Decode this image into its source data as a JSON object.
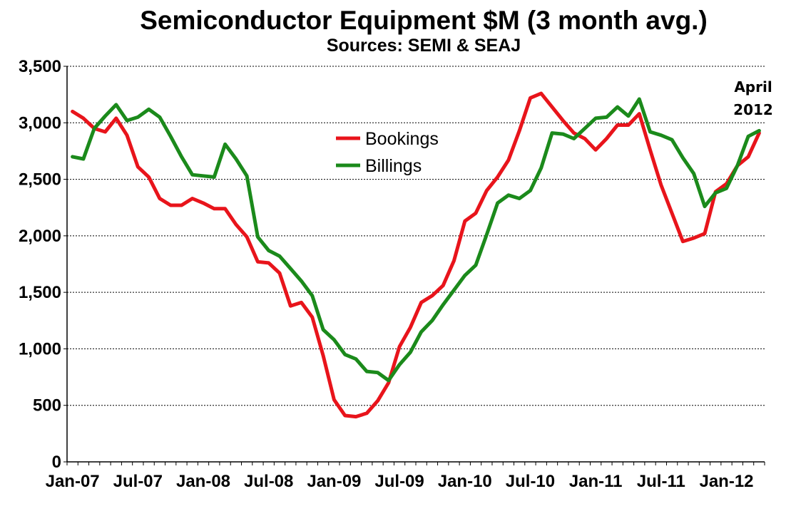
{
  "chart_data": {
    "type": "line",
    "title": "Semiconductor Equipment $M (3 month avg.)",
    "subtitle": "Sources: SEMI & SEAJ",
    "xlabel": "",
    "ylabel": "",
    "ylim": [
      0,
      3500
    ],
    "y_ticks": [
      0,
      500,
      1000,
      1500,
      2000,
      2500,
      3000,
      3500
    ],
    "y_tick_labels": [
      "0",
      "500",
      "1,000",
      "1,500",
      "2,000",
      "2,500",
      "3,000",
      "3,500"
    ],
    "x": [
      "Jan-07",
      "Feb-07",
      "Mar-07",
      "Apr-07",
      "May-07",
      "Jun-07",
      "Jul-07",
      "Aug-07",
      "Sep-07",
      "Oct-07",
      "Nov-07",
      "Dec-07",
      "Jan-08",
      "Feb-08",
      "Mar-08",
      "Apr-08",
      "May-08",
      "Jun-08",
      "Jul-08",
      "Aug-08",
      "Sep-08",
      "Oct-08",
      "Nov-08",
      "Dec-08",
      "Jan-09",
      "Feb-09",
      "Mar-09",
      "Apr-09",
      "May-09",
      "Jun-09",
      "Jul-09",
      "Aug-09",
      "Sep-09",
      "Oct-09",
      "Nov-09",
      "Dec-09",
      "Jan-10",
      "Feb-10",
      "Mar-10",
      "Apr-10",
      "May-10",
      "Jun-10",
      "Jul-10",
      "Aug-10",
      "Sep-10",
      "Oct-10",
      "Nov-10",
      "Dec-10",
      "Jan-11",
      "Feb-11",
      "Mar-11",
      "Apr-11",
      "May-11",
      "Jun-11",
      "Jul-11",
      "Aug-11",
      "Sep-11",
      "Oct-11",
      "Nov-11",
      "Dec-11",
      "Jan-12",
      "Feb-12",
      "Mar-12",
      "Apr-12"
    ],
    "x_tick_labels": [
      "Jan-07",
      "Jul-07",
      "Jan-08",
      "Jul-08",
      "Jan-09",
      "Jul-09",
      "Jan-10",
      "Jul-10",
      "Jan-11",
      "Jul-11",
      "Jan-12"
    ],
    "x_tick_every": 6,
    "grid": true,
    "legend_position": "center-left",
    "series": [
      {
        "name": "Bookings",
        "color": "#e8141b",
        "values": [
          3100,
          3040,
          2950,
          2920,
          3040,
          2890,
          2610,
          2520,
          2330,
          2270,
          2270,
          2330,
          2290,
          2240,
          2240,
          2100,
          1990,
          1770,
          1760,
          1670,
          1380,
          1410,
          1280,
          940,
          550,
          410,
          400,
          430,
          540,
          700,
          1020,
          1190,
          1410,
          1470,
          1560,
          1780,
          2130,
          2200,
          2400,
          2520,
          2670,
          2930,
          3220,
          3260,
          3140,
          3020,
          2910,
          2860,
          2760,
          2860,
          2980,
          2980,
          3080,
          2760,
          2450,
          2200,
          1950,
          1980,
          2020,
          2390,
          2460,
          2620,
          2700,
          2910
        ]
      },
      {
        "name": "Billings",
        "color": "#1b8a1b",
        "values": [
          2700,
          2680,
          2950,
          3060,
          3160,
          3020,
          3050,
          3120,
          3050,
          2880,
          2700,
          2540,
          2530,
          2520,
          2810,
          2680,
          2530,
          1990,
          1870,
          1820,
          1710,
          1600,
          1470,
          1170,
          1080,
          950,
          910,
          800,
          790,
          720,
          860,
          970,
          1150,
          1250,
          1390,
          1520,
          1650,
          1740,
          2010,
          2290,
          2360,
          2330,
          2400,
          2600,
          2910,
          2900,
          2860,
          2950,
          3040,
          3050,
          3140,
          3060,
          3210,
          2920,
          2890,
          2850,
          2690,
          2550,
          2260,
          2380,
          2420,
          2620,
          2880,
          2930
        ]
      }
    ],
    "annotation": {
      "line1": "April",
      "line2": "2012"
    }
  }
}
